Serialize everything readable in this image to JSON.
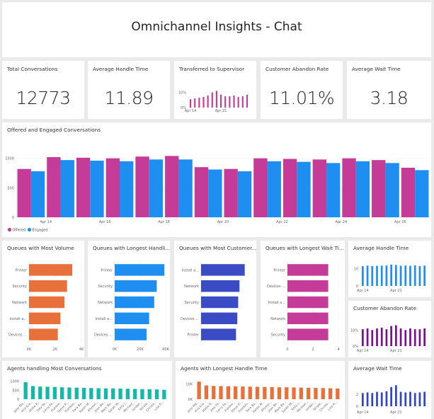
{
  "header": {
    "title": "Omnichannel Insights - Chat"
  },
  "kpis": {
    "total_conversations": {
      "title": "Total Conversations",
      "value": "12773"
    },
    "average_handle_time": {
      "title": "Average Handle Time",
      "value": "11.89"
    },
    "transferred": {
      "title": "Transferred to Supervisor"
    },
    "abandon_rate": {
      "title": "Customer Abandon Rate",
      "value": "11.01%"
    },
    "average_wait_time": {
      "title": "Average Wait Time",
      "value": "3.18"
    }
  },
  "colors": {
    "magenta": "#c43c97",
    "blue": "#1e8ff0",
    "orange": "#e8703a",
    "indigo": "#3a4bc3",
    "purple": "#7b0f8e",
    "teal": "#14b8a6",
    "royal": "#2f45c9"
  },
  "chart_data": [
    {
      "id": "transferred",
      "type": "bar",
      "title": "Transferred to Supervisor",
      "y_ticks": [
        "10%",
        "0%"
      ],
      "x_ticks": [
        "Apr 14",
        "Apr 21"
      ],
      "values": [
        0.055,
        0.06,
        0.065,
        0.07,
        0.08,
        0.1,
        0.11,
        0.085,
        0.075,
        0.075,
        0.08,
        0.07,
        0.075,
        0.085
      ],
      "ylim": [
        0,
        0.14
      ]
    },
    {
      "id": "offered_engaged",
      "type": "bar",
      "title": "Offered and Engaged Conversations",
      "y_ticks": [
        "1000",
        "500",
        "0"
      ],
      "x_ticks": [
        "Apr 14",
        "Apr 16",
        "Apr 18",
        "Apr 20",
        "Apr 22",
        "Apr 24",
        "Apr 26"
      ],
      "legend": [
        "Offered",
        "Engaged"
      ],
      "series": [
        {
          "name": "Offered",
          "values": [
            820,
            1020,
            1010,
            1000,
            1030,
            1040,
            850,
            820,
            1000,
            990,
            980,
            1000,
            970,
            840
          ]
        },
        {
          "name": "Engaged",
          "values": [
            780,
            970,
            960,
            950,
            980,
            980,
            810,
            780,
            950,
            940,
            920,
            950,
            920,
            800
          ]
        }
      ],
      "ylim": [
        0,
        1200
      ]
    },
    {
      "id": "queues_volume",
      "type": "bar",
      "orientation": "horizontal",
      "title": "Queues with Most Volume",
      "categories": [
        "Printer",
        "Security",
        "Network",
        "Install a...",
        "Devices ..."
      ],
      "values": [
        3300,
        2900,
        2700,
        2400,
        2200
      ],
      "x_ticks": [
        "0K",
        "2K",
        "4K"
      ],
      "xlim": [
        0,
        4000
      ]
    },
    {
      "id": "queues_handle",
      "type": "bar",
      "orientation": "horizontal",
      "title": "Queues with Longest Handli...",
      "categories": [
        "Printer",
        "Security",
        "Network",
        "Install a...",
        "Devices ..."
      ],
      "values": [
        39000,
        33000,
        31000,
        27000,
        25000
      ],
      "x_ticks": [
        "0K",
        "20K",
        "40K"
      ],
      "xlim": [
        0,
        40000
      ]
    },
    {
      "id": "queues_customer",
      "type": "bar",
      "orientation": "horizontal",
      "title": "Queues with Most Customer...",
      "categories": [
        "Install a...",
        "Network",
        "Security",
        "Devices ...",
        "Printer"
      ],
      "values": [
        1.0,
        0.88,
        0.85,
        0.83,
        0.8
      ],
      "x_ticks": [],
      "xlim": [
        0,
        1.2
      ]
    },
    {
      "id": "queues_wait",
      "type": "bar",
      "orientation": "horizontal",
      "title": "Queues with Longest Wait Ti...",
      "categories": [
        "Printer",
        "Devices ...",
        "Install a...",
        "Network",
        "Security"
      ],
      "values": [
        3.2,
        3.2,
        3.2,
        3.2,
        3.2
      ],
      "x_ticks": [
        "0",
        "2",
        "4"
      ],
      "xlim": [
        0,
        4
      ]
    },
    {
      "id": "avg_handle_small",
      "type": "bar",
      "title": "Average Handle Time",
      "y_ticks": [
        "10",
        "0"
      ],
      "x_ticks": [
        "Apr 14",
        "Apr 21"
      ],
      "values": [
        11.5,
        11.8,
        11.6,
        11.7,
        11.8,
        11.9,
        12.4,
        12.2,
        11.8,
        11.9,
        11.7,
        12.0,
        11.6,
        11.8
      ],
      "ylim": [
        0,
        14
      ]
    },
    {
      "id": "abandon_small",
      "type": "bar",
      "title": "Customer Abandon Rate",
      "y_ticks": [
        "10%",
        "0%"
      ],
      "x_ticks": [
        "Apr 14",
        "Apr 21"
      ],
      "values": [
        0.105,
        0.11,
        0.1,
        0.11,
        0.115,
        0.105,
        0.125,
        0.13,
        0.11,
        0.1,
        0.11,
        0.105,
        0.105,
        0.11
      ],
      "ylim": [
        0,
        0.15
      ]
    },
    {
      "id": "agents_conversations",
      "type": "bar",
      "title": "Agents handling Most Conversations",
      "y_ticks": [
        "1000",
        "500",
        "0"
      ],
      "categories": [
        "Jane Ma...",
        "Kris Kra...",
        "Hollie R...",
        "Joey Fa...",
        "Larry Fa...",
        "Frankie...",
        "Steve Fl...",
        "Franklin...",
        "Sara Bo...",
        "Aaron M...",
        "Allyson...",
        "Joan Be...",
        "Mark Ba...",
        "Sarah W...",
        "Kelly J...",
        "Michael...",
        "Jordan...",
        "Nicola...",
        "Christo...",
        "Lisa Fi..."
      ],
      "values": [
        940,
        730,
        700,
        690,
        680,
        660,
        650,
        640,
        630,
        620,
        610,
        600,
        600,
        590,
        580,
        570,
        560,
        550,
        540,
        520
      ],
      "ylim": [
        0,
        1100
      ]
    },
    {
      "id": "agents_handle",
      "type": "bar",
      "title": "Agents with Longest Handle Time",
      "y_ticks": [
        "10K",
        "0K"
      ],
      "categories": [
        "Jane Ma...",
        "Kris Kra...",
        "Hollie R...",
        "Joey Fa...",
        "Larry Fa...",
        "Frankie...",
        "Steve Fl...",
        "Franklin...",
        "Sara Bo...",
        "Aaron M...",
        "Allyson...",
        "Joan Be...",
        "Mark Ba...",
        "Sarah W...",
        "Kelly J...",
        "Michael...",
        "Jordan...",
        "Nicola...",
        "Christo...",
        "Lisa Fi..."
      ],
      "values": [
        11500,
        9000,
        8700,
        8600,
        8500,
        8400,
        8300,
        8200,
        8100,
        8000,
        7900,
        7800,
        7800,
        7700,
        7600,
        7500,
        7400,
        7300,
        7200,
        7000
      ],
      "ylim": [
        0,
        13000
      ]
    },
    {
      "id": "avg_wait_small",
      "type": "bar",
      "title": "Average Wait Time",
      "y_ticks": [
        "2",
        "0"
      ],
      "x_ticks": [
        "Apr 14",
        "Apr 21"
      ],
      "values": [
        2.2,
        2.3,
        2.2,
        2.4,
        2.3,
        2.5,
        3.2,
        3.5,
        2.4,
        2.3,
        2.4,
        2.2,
        2.3,
        2.4
      ],
      "ylim": [
        0,
        4
      ]
    }
  ]
}
